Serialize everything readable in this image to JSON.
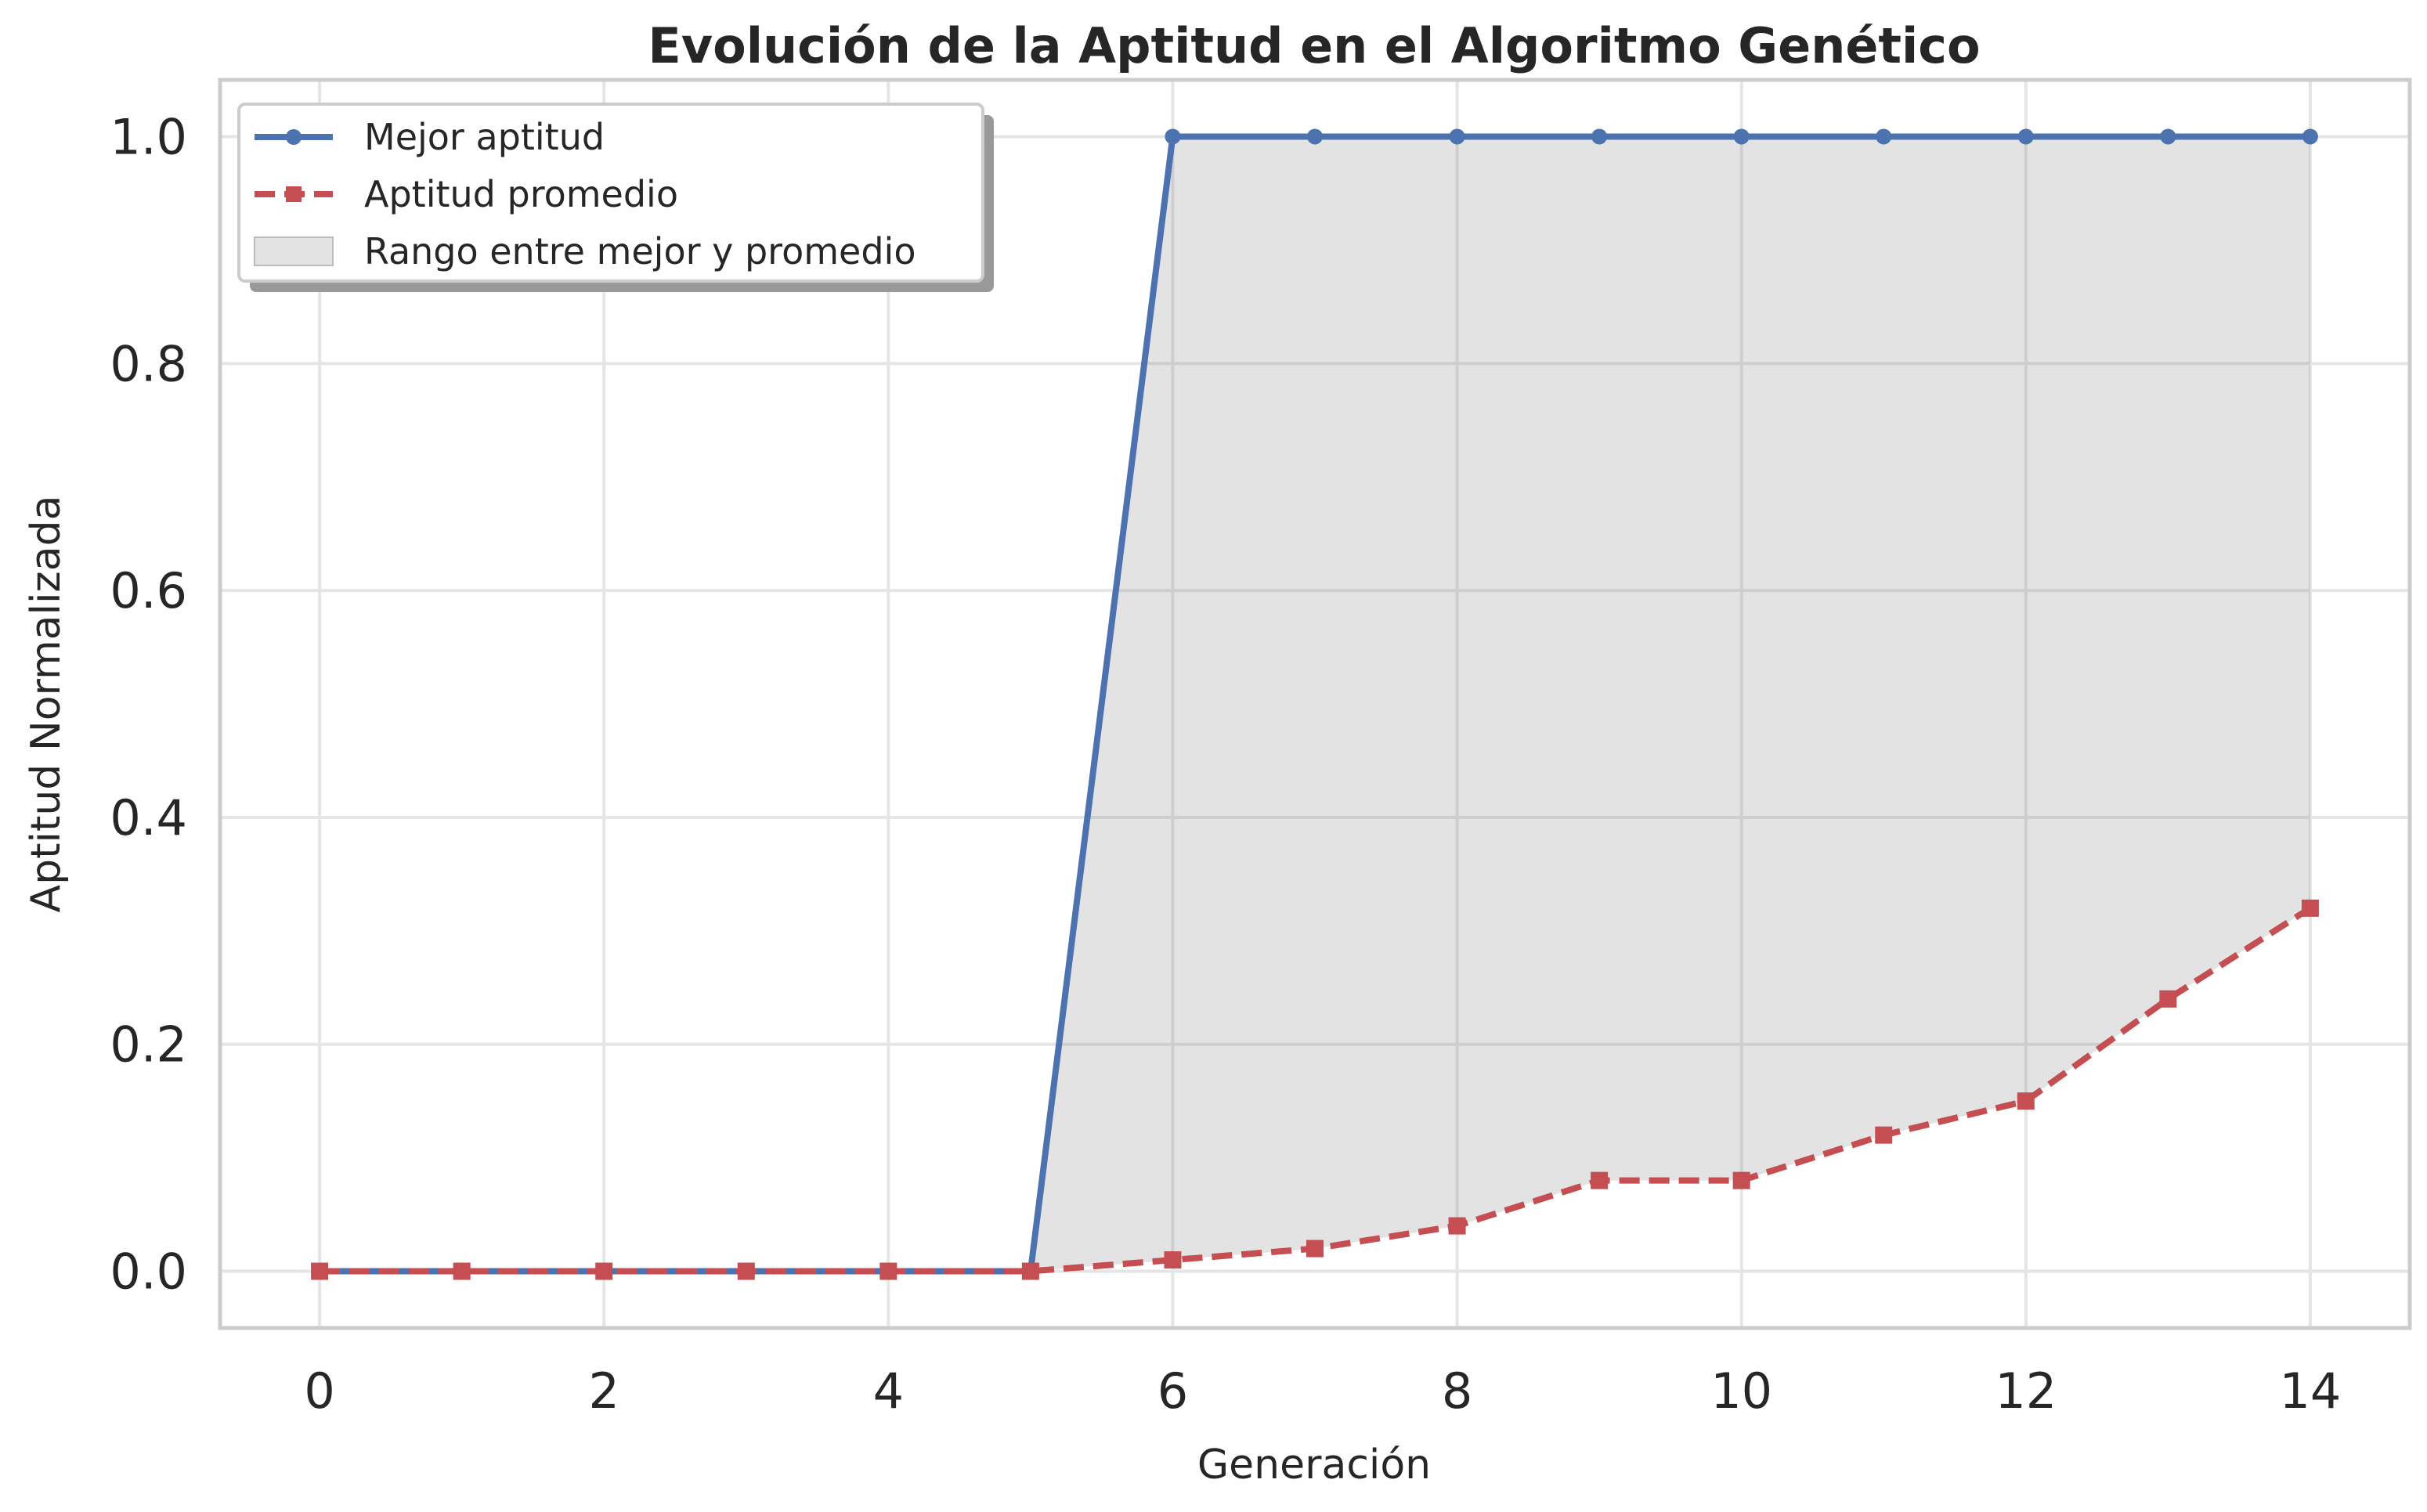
{
  "chart_data": {
    "type": "line",
    "title": "Evolución de la Aptitud en el Algoritmo Genético",
    "xlabel": "Generación",
    "ylabel": "Aptitud Normalizada",
    "xlim": [
      -0.7,
      14.7
    ],
    "ylim": [
      -0.05,
      1.05
    ],
    "xticks": [
      0,
      2,
      4,
      6,
      8,
      10,
      12,
      14
    ],
    "yticks": [
      0.0,
      0.2,
      0.4,
      0.6,
      0.8,
      1.0
    ],
    "xtick_labels": [
      "0",
      "2",
      "4",
      "6",
      "8",
      "10",
      "12",
      "14"
    ],
    "ytick_labels": [
      "0.0",
      "0.2",
      "0.4",
      "0.6",
      "0.8",
      "1.0"
    ],
    "grid": true,
    "legend_position": "top-left",
    "x": [
      0,
      1,
      2,
      3,
      4,
      5,
      6,
      7,
      8,
      9,
      10,
      11,
      12,
      13,
      14
    ],
    "series": [
      {
        "name": "Mejor aptitud",
        "color": "#4c72b0",
        "marker": "circle",
        "linestyle": "solid",
        "values": [
          0,
          0,
          0,
          0,
          0,
          0,
          1.0,
          1.0,
          1.0,
          1.0,
          1.0,
          1.0,
          1.0,
          1.0,
          1.0
        ]
      },
      {
        "name": "Aptitud promedio",
        "color": "#c44e52",
        "marker": "square",
        "linestyle": "dashed",
        "values": [
          0,
          0,
          0,
          0,
          0,
          0,
          0.01,
          0.02,
          0.04,
          0.08,
          0.08,
          0.12,
          0.15,
          0.24,
          0.32
        ]
      }
    ],
    "fill_between": {
      "name": "Rango entre mejor y promedio",
      "color": "#808080",
      "opacity": 0.22
    }
  }
}
